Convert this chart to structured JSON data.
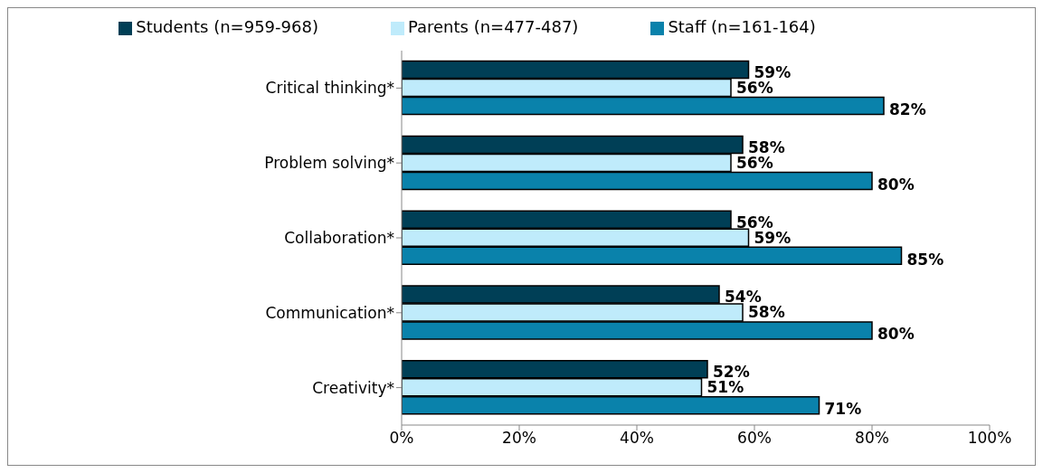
{
  "chart_data": {
    "type": "bar",
    "orientation": "horizontal",
    "categories": [
      "Critical thinking*",
      "Problem solving*",
      "Collaboration*",
      "Communication*",
      "Creativity*"
    ],
    "series": [
      {
        "name": "Students (n=959-968)",
        "color": "#003f56",
        "values": [
          59,
          58,
          56,
          54,
          52
        ],
        "value_labels": [
          "59%",
          "58%",
          "56%",
          "54%",
          "52%"
        ]
      },
      {
        "name": "Parents (n=477-487)",
        "color": "#bfebfb",
        "values": [
          56,
          56,
          59,
          58,
          51
        ],
        "value_labels": [
          "56%",
          "56%",
          "59%",
          "58%",
          "51%"
        ]
      },
      {
        "name": "Staff (n=161-164)",
        "color": "#0a82ab",
        "values": [
          82,
          80,
          85,
          80,
          71
        ],
        "value_labels": [
          "82%",
          "80%",
          "85%",
          "80%",
          "71%"
        ]
      }
    ],
    "xlim": [
      0,
      100
    ],
    "xticks": [
      {
        "value": 0,
        "label": "0%"
      },
      {
        "value": 20,
        "label": "20%"
      },
      {
        "value": 40,
        "label": "40%"
      },
      {
        "value": 60,
        "label": "60%"
      },
      {
        "value": 80,
        "label": "80%"
      },
      {
        "value": 100,
        "label": "100%"
      }
    ],
    "grid": false,
    "legend": "top"
  }
}
